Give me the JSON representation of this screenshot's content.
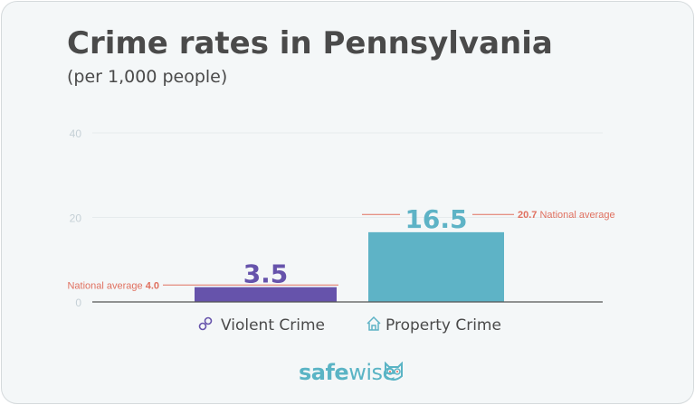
{
  "title": "Crime rates in Pennsylvania",
  "subtitle": "(per 1,000 people)",
  "brand": {
    "part1": "safe",
    "part2": "wise",
    "icon": "owl-icon"
  },
  "colors": {
    "violent": "#6653ab",
    "property": "#5eb3c6",
    "national": "#e0705f",
    "axis": "#555555",
    "grid": "#e6ebed",
    "tick": "#c5d0d6"
  },
  "chart_data": {
    "type": "bar",
    "title": "Crime rates in Pennsylvania",
    "subtitle": "(per 1,000 people)",
    "categories": [
      "Violent Crime",
      "Property Crime"
    ],
    "category_icons": [
      "handcuffs-icon",
      "house-icon"
    ],
    "values": [
      3.5,
      16.5
    ],
    "value_labels": [
      "3.5",
      "16.5"
    ],
    "national_average": [
      4.0,
      20.7
    ],
    "national_labels": [
      {
        "text": "National average ",
        "value": "4.0",
        "side": "left"
      },
      {
        "value": "20.7",
        "text": " National average",
        "side": "right"
      }
    ],
    "yticks": [
      0,
      20,
      40
    ],
    "ylim": [
      0,
      40
    ],
    "grid": true
  }
}
